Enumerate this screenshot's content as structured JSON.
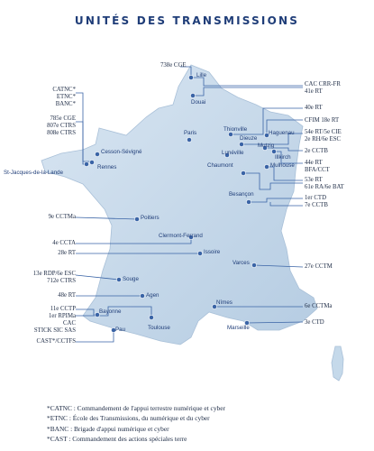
{
  "title": "UNITÉS DES TRANSMISSIONS",
  "cities": [
    {
      "key": "lille",
      "label": "Lille"
    },
    {
      "key": "douai",
      "label": "Douai"
    },
    {
      "key": "paris",
      "label": "Paris"
    },
    {
      "key": "cesson",
      "label": "Cesson-Sévigné"
    },
    {
      "key": "rennes",
      "label": "Rennes"
    },
    {
      "key": "stjacques",
      "label": "St-Jacques-de-la-Lande"
    },
    {
      "key": "thionville",
      "label": "Thionville"
    },
    {
      "key": "dieuze",
      "label": "Dieuze"
    },
    {
      "key": "haguenau",
      "label": "Haguenau"
    },
    {
      "key": "mutzig",
      "label": "Mutzig"
    },
    {
      "key": "illkirch",
      "label": "Illkirch"
    },
    {
      "key": "luneville",
      "label": "Lunéville"
    },
    {
      "key": "mulhouse",
      "label": "Mulhouse"
    },
    {
      "key": "chaumont",
      "label": "Chaumont"
    },
    {
      "key": "besancon",
      "label": "Besançon"
    },
    {
      "key": "poitiers",
      "label": "Poitiers"
    },
    {
      "key": "clermont",
      "label": "Clermont-Ferrand"
    },
    {
      "key": "issoire",
      "label": "Issoire"
    },
    {
      "key": "varces",
      "label": "Varces"
    },
    {
      "key": "souge",
      "label": "Souge"
    },
    {
      "key": "agen",
      "label": "Agen"
    },
    {
      "key": "bayonne",
      "label": "Bayonne"
    },
    {
      "key": "toulouse",
      "label": "Toulouse"
    },
    {
      "key": "pau",
      "label": "Pau"
    },
    {
      "key": "nimes",
      "label": "Nîmes"
    },
    {
      "key": "marseille",
      "label": "Marseille"
    }
  ],
  "units": [
    {
      "key": "cge738",
      "lines": [
        "738e CGE"
      ]
    },
    {
      "key": "catnc",
      "lines": [
        "CATNC*",
        "ETNC*",
        "BANC*"
      ]
    },
    {
      "key": "cge785",
      "lines": [
        "785e CGE",
        "807e CTRS",
        "808e CTRS"
      ]
    },
    {
      "key": "cac_crr",
      "lines": [
        "CAC CRR-FR",
        "41e RT"
      ]
    },
    {
      "key": "rt40",
      "lines": [
        "40e RT"
      ]
    },
    {
      "key": "cfim",
      "lines": [
        "CFIM 18e RT"
      ]
    },
    {
      "key": "rt54",
      "lines": [
        "54e RT/5e CIE",
        "2e RH/6e ESC"
      ]
    },
    {
      "key": "cctb2",
      "lines": [
        "2e CCTB"
      ]
    },
    {
      "key": "rt44",
      "lines": [
        "44e RT",
        "BFA/CCT"
      ]
    },
    {
      "key": "rt53",
      "lines": [
        "53e RT",
        "61e RA/6e BAT"
      ]
    },
    {
      "key": "ctd1",
      "lines": [
        "1er CTD",
        "7e CCTB"
      ]
    },
    {
      "key": "cctma9",
      "lines": [
        "9e CCTMa"
      ]
    },
    {
      "key": "ccta4",
      "lines": [
        "4e CCTA"
      ]
    },
    {
      "key": "rt28",
      "lines": [
        "28e RT"
      ]
    },
    {
      "key": "rdp13",
      "lines": [
        "13e RDP/6e ESC",
        "712e CTRS"
      ]
    },
    {
      "key": "cctm27",
      "lines": [
        "27e CCTM"
      ]
    },
    {
      "key": "rt48",
      "lines": [
        "48e RT"
      ]
    },
    {
      "key": "cctp11",
      "lines": [
        "11e CCTP",
        "1er RPIMa",
        "CAC",
        "STICK SIC SAS"
      ]
    },
    {
      "key": "cast",
      "lines": [
        "CAST*/CCTFS"
      ]
    },
    {
      "key": "cctma6",
      "lines": [
        "6e CCTMa"
      ]
    },
    {
      "key": "ctd3",
      "lines": [
        "3e CTD"
      ]
    }
  ],
  "legend": [
    "*CATNC : Commandement de l'appui terrestre numérique et cyber",
    "*ETNC : École des Transmissions, du numérique et du cyber",
    "*BANC : Brigade d'appui numérique et cyber",
    "*CAST : Commandement des actions spéciales terre"
  ],
  "colors": {
    "map_fill": "#c5d9ea",
    "marker": "#3a64a6",
    "line": "#3a64a6",
    "title": "#1f3d78"
  }
}
